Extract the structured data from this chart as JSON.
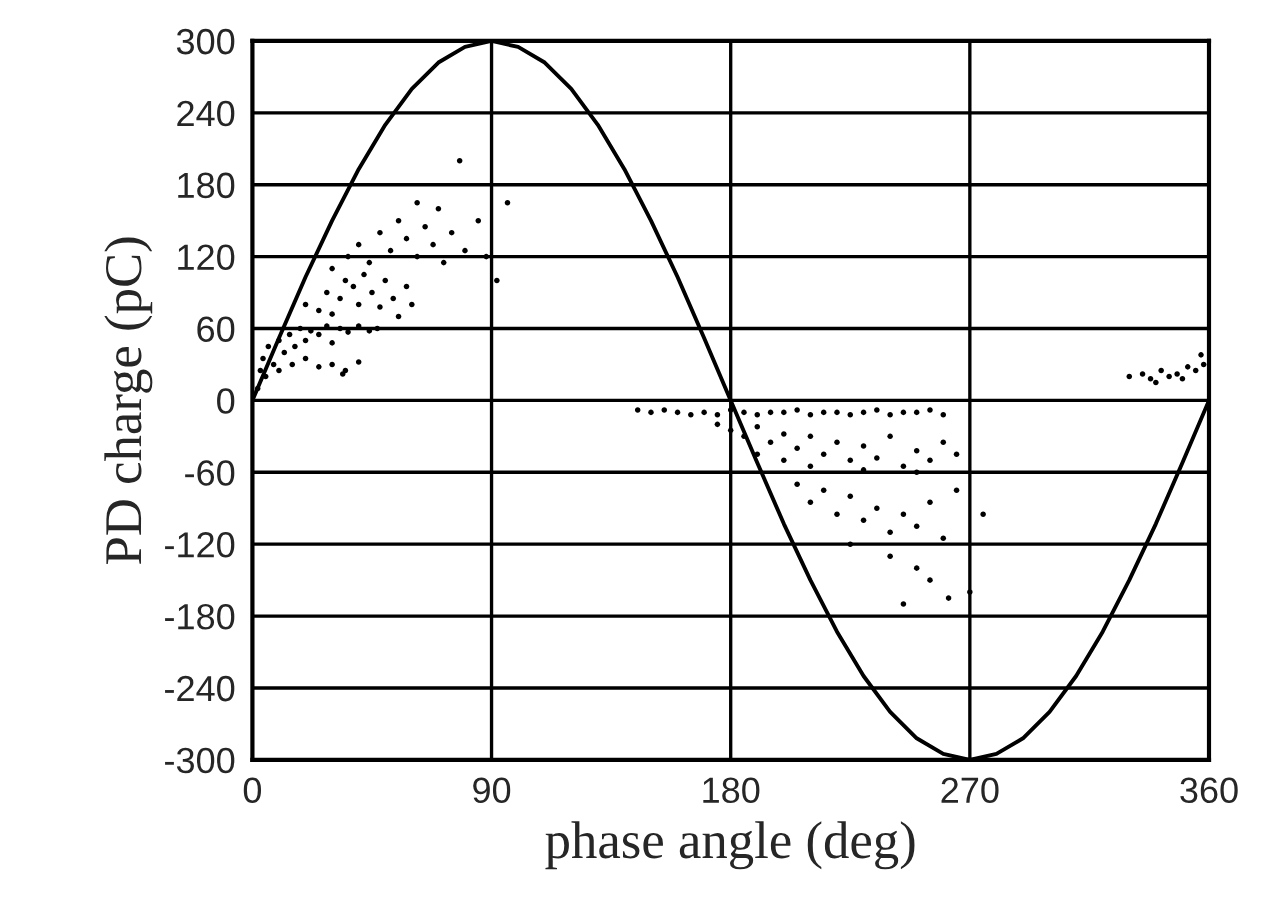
{
  "chart_data": {
    "type": "scatter",
    "xlabel": "phase angle (deg)",
    "ylabel": "PD charge (pC)",
    "xlim": [
      0,
      360
    ],
    "xticks": [
      0,
      90,
      180,
      270,
      360
    ],
    "ylim": [
      -300,
      300
    ],
    "yticks": [
      -300,
      -240,
      -180,
      -120,
      -60,
      0,
      60,
      120,
      180,
      240,
      300
    ],
    "grid": true,
    "legend": false,
    "series": [
      {
        "marker": "circle",
        "color": "#000000",
        "x": [
          2,
          3,
          4,
          5,
          6,
          8,
          10,
          12,
          14,
          16,
          18,
          20,
          22,
          25,
          28,
          30,
          33,
          36,
          40,
          44,
          47,
          10,
          15,
          20,
          25,
          30,
          35,
          40,
          34,
          20,
          25,
          28,
          30,
          33,
          35,
          38,
          40,
          42,
          45,
          48,
          50,
          53,
          55,
          58,
          60,
          30,
          36,
          40,
          44,
          48,
          52,
          55,
          58,
          62,
          65,
          68,
          72,
          75,
          80,
          85,
          88,
          70,
          62,
          78,
          96,
          92,
          145,
          150,
          155,
          160,
          165,
          170,
          175,
          180,
          185,
          190,
          195,
          200,
          205,
          210,
          215,
          220,
          225,
          230,
          235,
          240,
          245,
          250,
          255,
          260,
          175,
          180,
          185,
          190,
          195,
          200,
          205,
          210,
          215,
          220,
          225,
          230,
          235,
          240,
          245,
          250,
          255,
          260,
          265,
          200,
          210,
          230,
          250,
          205,
          210,
          215,
          220,
          225,
          230,
          235,
          240,
          245,
          250,
          255,
          260,
          265,
          225,
          240,
          250,
          255,
          262,
          245,
          270,
          275,
          190,
          330,
          335,
          338,
          342,
          345,
          348,
          352,
          355,
          358,
          357,
          350,
          340
        ],
        "values": [
          10,
          25,
          35,
          20,
          45,
          30,
          50,
          40,
          55,
          45,
          60,
          50,
          58,
          55,
          62,
          48,
          60,
          57,
          62,
          58,
          60,
          25,
          30,
          35,
          28,
          30,
          25,
          32,
          22,
          80,
          75,
          90,
          72,
          85,
          100,
          95,
          80,
          105,
          90,
          78,
          100,
          85,
          70,
          95,
          80,
          110,
          120,
          130,
          115,
          140,
          125,
          150,
          135,
          120,
          145,
          130,
          115,
          140,
          125,
          150,
          120,
          160,
          165,
          200,
          165,
          100,
          -8,
          -10,
          -8,
          -10,
          -12,
          -10,
          -12,
          -8,
          -10,
          -12,
          -10,
          -10,
          -8,
          -12,
          -10,
          -10,
          -12,
          -10,
          -8,
          -12,
          -10,
          -10,
          -8,
          -12,
          -20,
          -25,
          -30,
          -22,
          -35,
          -28,
          -40,
          -30,
          -45,
          -35,
          -50,
          -38,
          -48,
          -30,
          -55,
          -42,
          -50,
          -35,
          -45,
          -50,
          -55,
          -58,
          -60,
          -70,
          -85,
          -75,
          -95,
          -80,
          -100,
          -90,
          -110,
          -95,
          -105,
          -85,
          -115,
          -75,
          -120,
          -130,
          -140,
          -150,
          -165,
          -170,
          -160,
          -95,
          -45,
          20,
          22,
          18,
          25,
          20,
          22,
          28,
          25,
          30,
          38,
          18,
          15
        ]
      },
      {
        "type": "line",
        "marker": "none",
        "line_style": "solid",
        "color": "#000000",
        "x": [
          0,
          10,
          20,
          30,
          40,
          50,
          60,
          70,
          80,
          90,
          100,
          110,
          120,
          130,
          140,
          150,
          160,
          170,
          180,
          190,
          200,
          210,
          220,
          230,
          240,
          250,
          260,
          270,
          280,
          290,
          300,
          310,
          320,
          330,
          340,
          350,
          360
        ],
        "values": [
          0,
          52,
          103,
          150,
          193,
          230,
          260,
          282,
          295,
          300,
          295,
          282,
          260,
          230,
          193,
          150,
          103,
          52,
          0,
          -52,
          -103,
          -150,
          -193,
          -230,
          -260,
          -282,
          -295,
          -300,
          -295,
          -282,
          -260,
          -230,
          -193,
          -150,
          -103,
          -52,
          0
        ]
      }
    ]
  }
}
